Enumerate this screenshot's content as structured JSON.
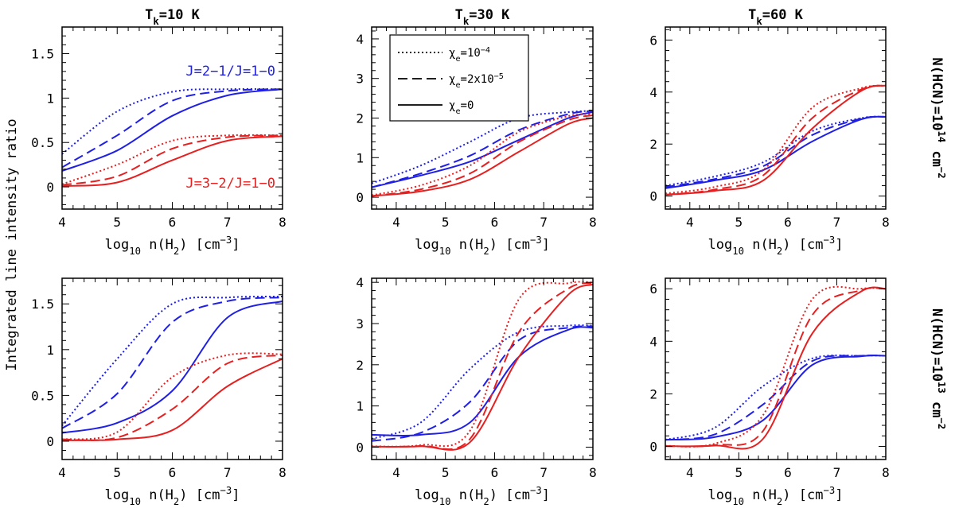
{
  "figure": {
    "ylabel": "Integrated line intensity ratio",
    "column_titles": [
      "T_k=10 K",
      "T_k=30 K",
      "T_k=60 K"
    ],
    "row_labels": [
      "N(HCN)=10^14 cm^-2",
      "N(HCN)=10^13 cm^-2"
    ],
    "xlabel": "log10 n(H2) [cm^-3]",
    "annotations": [
      "J=2−1/J=1−0",
      "J=3−2/J=1−0"
    ],
    "legend": [
      {
        "label": "χe=10^-4",
        "style": "dotted"
      },
      {
        "label": "χe=2x10^-5",
        "style": "dashed"
      },
      {
        "label": "χe=0",
        "style": "solid"
      }
    ],
    "colors": {
      "J21": "#1f1fe6",
      "J32": "#e62020"
    }
  },
  "chart_data": [
    {
      "type": "line",
      "panel": "row1-col1",
      "xlim": [
        4,
        8
      ],
      "ylim": [
        -0.25,
        1.8
      ],
      "xticks": [
        4,
        5,
        6,
        7,
        8
      ],
      "yticks": [
        0,
        0.5,
        1,
        1.5
      ],
      "x": [
        4,
        5,
        6,
        7,
        8
      ],
      "series": [
        {
          "line": "J=2−1/J=1−0",
          "chi_e": "1e-4",
          "values": [
            0.37,
            0.85,
            1.07,
            1.1,
            1.1
          ]
        },
        {
          "line": "J=2−1/J=1−0",
          "chi_e": "2e-5",
          "values": [
            0.22,
            0.58,
            0.97,
            1.08,
            1.1
          ]
        },
        {
          "line": "J=2−1/J=1−0",
          "chi_e": "0",
          "values": [
            0.18,
            0.41,
            0.8,
            1.03,
            1.1
          ]
        },
        {
          "line": "J=3−2/J=1−0",
          "chi_e": "1e-4",
          "values": [
            0.03,
            0.25,
            0.52,
            0.58,
            0.58
          ]
        },
        {
          "line": "J=3−2/J=1−0",
          "chi_e": "2e-5",
          "values": [
            0.02,
            0.12,
            0.43,
            0.56,
            0.58
          ]
        },
        {
          "line": "J=3−2/J=1−0",
          "chi_e": "0",
          "values": [
            0.01,
            0.05,
            0.3,
            0.52,
            0.57
          ]
        }
      ]
    },
    {
      "type": "line",
      "panel": "row1-col2",
      "xlim": [
        3.5,
        8
      ],
      "ylim": [
        -0.3,
        4.3
      ],
      "xticks": [
        4,
        5,
        6,
        7,
        8
      ],
      "yticks": [
        0,
        1,
        2,
        3,
        4
      ],
      "x": [
        3.5,
        4.5,
        5.5,
        6.5,
        7.5,
        8
      ],
      "series": [
        {
          "line": "J=2−1/J=1−0",
          "chi_e": "1e-4",
          "values": [
            0.35,
            0.8,
            1.4,
            2.0,
            2.15,
            2.18
          ]
        },
        {
          "line": "J=2−1/J=1−0",
          "chi_e": "2e-5",
          "values": [
            0.25,
            0.6,
            1.05,
            1.7,
            2.1,
            2.18
          ]
        },
        {
          "line": "J=2−1/J=1−0",
          "chi_e": "0",
          "values": [
            0.25,
            0.55,
            0.9,
            1.45,
            2.0,
            2.15
          ]
        },
        {
          "line": "J=3−2/J=1−0",
          "chi_e": "1e-4",
          "values": [
            0.05,
            0.3,
            0.8,
            1.65,
            2.05,
            2.1
          ]
        },
        {
          "line": "J=3−2/J=1−0",
          "chi_e": "2e-5",
          "values": [
            0.03,
            0.2,
            0.6,
            1.4,
            1.95,
            2.07
          ]
        },
        {
          "line": "J=3−2/J=1−0",
          "chi_e": "0",
          "values": [
            0.03,
            0.15,
            0.45,
            1.15,
            1.85,
            2.0
          ]
        }
      ]
    },
    {
      "type": "line",
      "panel": "row1-col3",
      "xlim": [
        3.5,
        8
      ],
      "ylim": [
        -0.5,
        6.5
      ],
      "xticks": [
        4,
        5,
        6,
        7,
        8
      ],
      "yticks": [
        0,
        2,
        4,
        6
      ],
      "x": [
        3.5,
        4.5,
        5.5,
        6.5,
        7.5,
        8
      ],
      "series": [
        {
          "line": "J=2−1/J=1−0",
          "chi_e": "1e-4",
          "values": [
            0.4,
            0.75,
            1.3,
            2.5,
            3.0,
            3.05
          ]
        },
        {
          "line": "J=2−1/J=1−0",
          "chi_e": "2e-5",
          "values": [
            0.35,
            0.65,
            1.15,
            2.35,
            2.98,
            3.05
          ]
        },
        {
          "line": "J=2−1/J=1−0",
          "chi_e": "0",
          "values": [
            0.3,
            0.6,
            1.0,
            2.1,
            2.95,
            3.05
          ]
        },
        {
          "line": "J=3−2/J=1−0",
          "chi_e": "1e-4",
          "values": [
            0.1,
            0.35,
            1.0,
            3.4,
            4.15,
            4.25
          ]
        },
        {
          "line": "J=3−2/J=1−0",
          "chi_e": "2e-5",
          "values": [
            0.05,
            0.25,
            0.8,
            3.0,
            4.1,
            4.25
          ]
        },
        {
          "line": "J=3−2/J=1−0",
          "chi_e": "0",
          "values": [
            0.05,
            0.2,
            0.6,
            2.6,
            4.05,
            4.25
          ]
        }
      ]
    },
    {
      "type": "line",
      "panel": "row2-col1",
      "xlim": [
        4,
        8
      ],
      "ylim": [
        -0.2,
        1.78
      ],
      "xticks": [
        4,
        5,
        6,
        7,
        8
      ],
      "yticks": [
        0,
        0.5,
        1,
        1.5
      ],
      "x": [
        4,
        5,
        6,
        7,
        8
      ],
      "series": [
        {
          "line": "J=2−1/J=1−0",
          "chi_e": "1e-4",
          "values": [
            0.17,
            0.9,
            1.5,
            1.57,
            1.58
          ]
        },
        {
          "line": "J=2−1/J=1−0",
          "chi_e": "2e-5",
          "values": [
            0.14,
            0.52,
            1.3,
            1.53,
            1.57
          ]
        },
        {
          "line": "J=2−1/J=1−0",
          "chi_e": "0",
          "values": [
            0.09,
            0.2,
            0.55,
            1.35,
            1.53
          ]
        },
        {
          "line": "J=3−2/J=1−0",
          "chi_e": "1e-4",
          "values": [
            0.02,
            0.1,
            0.7,
            0.94,
            0.95
          ]
        },
        {
          "line": "J=3−2/J=1−0",
          "chi_e": "2e-5",
          "values": [
            0.02,
            0.04,
            0.35,
            0.85,
            0.94
          ]
        },
        {
          "line": "J=3−2/J=1−0",
          "chi_e": "0",
          "values": [
            0.01,
            0.02,
            0.12,
            0.6,
            0.9
          ]
        }
      ]
    },
    {
      "type": "line",
      "panel": "row2-col2",
      "xlim": [
        3.5,
        8
      ],
      "ylim": [
        -0.3,
        4.1
      ],
      "xticks": [
        4,
        5,
        6,
        7,
        8
      ],
      "yticks": [
        0,
        1,
        2,
        3,
        4
      ],
      "x": [
        3.5,
        4.5,
        5.5,
        6.5,
        7.5,
        8
      ],
      "series": [
        {
          "line": "J=2−1/J=1−0",
          "chi_e": "1e-4",
          "values": [
            0.2,
            0.6,
            1.9,
            2.8,
            2.95,
            2.95
          ]
        },
        {
          "line": "J=2−1/J=1−0",
          "chi_e": "2e-5",
          "values": [
            0.15,
            0.35,
            1.1,
            2.6,
            2.9,
            2.93
          ]
        },
        {
          "line": "J=2−1/J=1−0",
          "chi_e": "0",
          "values": [
            0.3,
            0.3,
            0.6,
            2.2,
            2.85,
            2.9
          ]
        },
        {
          "line": "J=3−2/J=1−0",
          "chi_e": "1e-4",
          "values": [
            0.02,
            0.05,
            0.4,
            3.6,
            3.98,
            4.0
          ]
        },
        {
          "line": "J=3−2/J=1−0",
          "chi_e": "2e-5",
          "values": [
            0.01,
            0.03,
            0.2,
            2.8,
            3.85,
            3.98
          ]
        },
        {
          "line": "J=3−2/J=1−0",
          "chi_e": "0",
          "values": [
            0.01,
            0.02,
            0.12,
            2.2,
            3.7,
            3.95
          ]
        }
      ]
    },
    {
      "type": "line",
      "panel": "row2-col3",
      "xlim": [
        3.5,
        8
      ],
      "ylim": [
        -0.5,
        6.4
      ],
      "xticks": [
        4,
        5,
        6,
        7,
        8
      ],
      "yticks": [
        0,
        2,
        4,
        6
      ],
      "x": [
        3.5,
        4.5,
        5.5,
        6.5,
        7.5,
        8
      ],
      "series": [
        {
          "line": "J=2−1/J=1−0",
          "chi_e": "1e-4",
          "values": [
            0.25,
            0.7,
            2.3,
            3.35,
            3.45,
            3.45
          ]
        },
        {
          "line": "J=2−1/J=1−0",
          "chi_e": "2e-5",
          "values": [
            0.25,
            0.45,
            1.6,
            3.25,
            3.45,
            3.45
          ]
        },
        {
          "line": "J=2−1/J=1−0",
          "chi_e": "0",
          "values": [
            0.25,
            0.35,
            1.0,
            3.1,
            3.43,
            3.45
          ]
        },
        {
          "line": "J=3−2/J=1−0",
          "chi_e": "1e-4",
          "values": [
            0.02,
            0.1,
            1.2,
            5.6,
            6.0,
            6.0
          ]
        },
        {
          "line": "J=3−2/J=1−0",
          "chi_e": "2e-5",
          "values": [
            0.01,
            0.05,
            0.6,
            5.0,
            5.95,
            6.0
          ]
        },
        {
          "line": "J=3−2/J=1−0",
          "chi_e": "0",
          "values": [
            0.01,
            0.03,
            0.3,
            4.3,
            5.9,
            6.0
          ]
        }
      ]
    }
  ]
}
